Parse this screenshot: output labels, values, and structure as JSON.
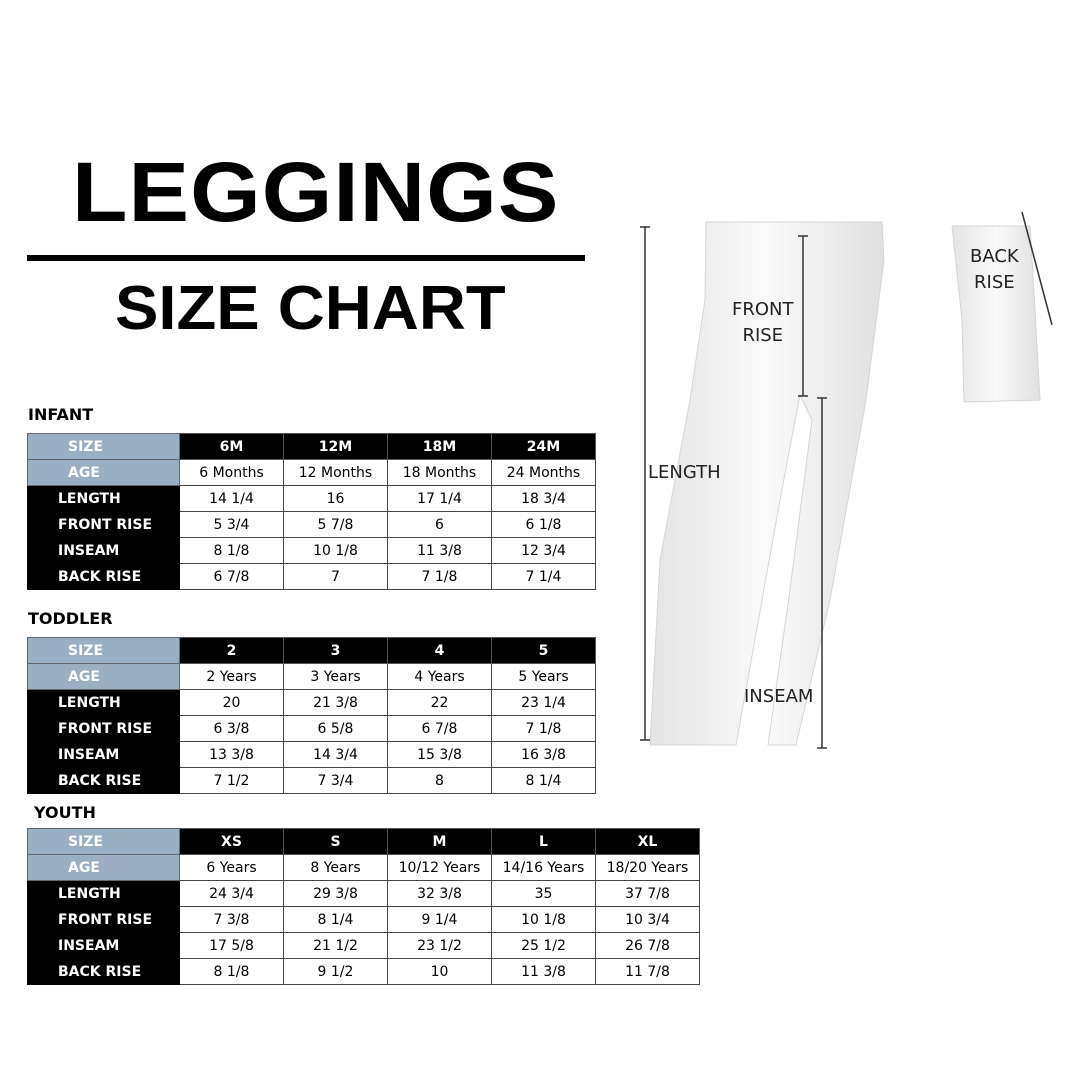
{
  "title": "LEGGINGS",
  "subtitle": "SIZE CHART",
  "colors": {
    "header_blue": "#9aaec4",
    "header_black": "#000000"
  },
  "row_labels": {
    "size": "SIZE",
    "age": "AGE",
    "length": "LENGTH",
    "front_rise": "FRONT RISE",
    "inseam": "INSEAM",
    "back_rise": "BACK RISE"
  },
  "sections": [
    {
      "name": "INFANT",
      "sizes": [
        "6M",
        "12M",
        "18M",
        "24M"
      ],
      "ages": [
        "6 Months",
        "12 Months",
        "18 Months",
        "24 Months"
      ],
      "length": [
        "14 1/4",
        "16",
        "17 1/4",
        "18 3/4"
      ],
      "front_rise": [
        "5 3/4",
        "5 7/8",
        "6",
        "6 1/8"
      ],
      "inseam": [
        "8 1/8",
        "10 1/8",
        "11 3/8",
        "12 3/4"
      ],
      "back_rise": [
        "6 7/8",
        "7",
        "7 1/8",
        "7 1/4"
      ]
    },
    {
      "name": "TODDLER",
      "sizes": [
        "2",
        "3",
        "4",
        "5"
      ],
      "ages": [
        "2 Years",
        "3 Years",
        "4 Years",
        "5 Years"
      ],
      "length": [
        "20",
        "21 3/8",
        "22",
        "23 1/4"
      ],
      "front_rise": [
        "6 3/8",
        "6 5/8",
        "6 7/8",
        "7 1/8"
      ],
      "inseam": [
        "13 3/8",
        "14 3/4",
        "15 3/8",
        "16 3/8"
      ],
      "back_rise": [
        "7 1/2",
        "7 3/4",
        "8",
        "8 1/4"
      ]
    },
    {
      "name": "YOUTH",
      "sizes": [
        "XS",
        "S",
        "M",
        "L",
        "XL"
      ],
      "ages": [
        "6 Years",
        "8 Years",
        "10/12 Years",
        "14/16 Years",
        "18/20 Years"
      ],
      "length": [
        "24 3/4",
        "29 3/8",
        "32 3/8",
        "35",
        "37 7/8"
      ],
      "front_rise": [
        "7 3/8",
        "8 1/4",
        "9 1/4",
        "10 1/8",
        "10 3/4"
      ],
      "inseam": [
        "17 5/8",
        "21 1/2",
        "23 1/2",
        "25 1/2",
        "26 7/8"
      ],
      "back_rise": [
        "8 1/8",
        "9 1/2",
        "10",
        "11 3/8",
        "11 7/8"
      ]
    }
  ],
  "diagram": {
    "length": "LENGTH",
    "front_rise": "FRONT\nRISE",
    "back_rise": "BACK\nRISE",
    "inseam": "INSEAM"
  }
}
